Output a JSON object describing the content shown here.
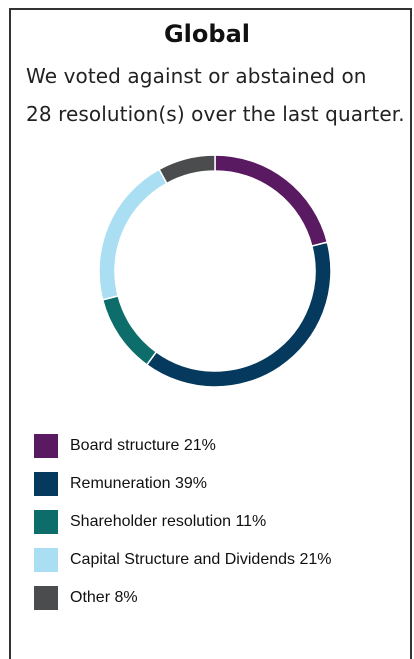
{
  "header": {
    "title": "Global",
    "subtitle_line1": "We voted against or abstained on",
    "subtitle_line2": "28 resolution(s) over the last quarter."
  },
  "chart_data": {
    "type": "pie",
    "variant": "donut",
    "title": "Global",
    "legend_placement": "bottom",
    "slices": [
      {
        "label": "Board structure 21%",
        "name": "Board structure",
        "value": 21,
        "color": "#5a1a62"
      },
      {
        "label": "Remuneration 39%",
        "name": "Remuneration",
        "value": 39,
        "color": "#053a5e"
      },
      {
        "label": "Shareholder resolution 11%",
        "name": "Shareholder resolution",
        "value": 11,
        "color": "#0d6d6a"
      },
      {
        "label": "Capital Structure and Dividends 21%",
        "name": "Capital Structure and Dividends",
        "value": 21,
        "color": "#a9def3"
      },
      {
        "label": "Other 8%",
        "name": "Other",
        "value": 8,
        "color": "#4a4c4d"
      }
    ]
  }
}
